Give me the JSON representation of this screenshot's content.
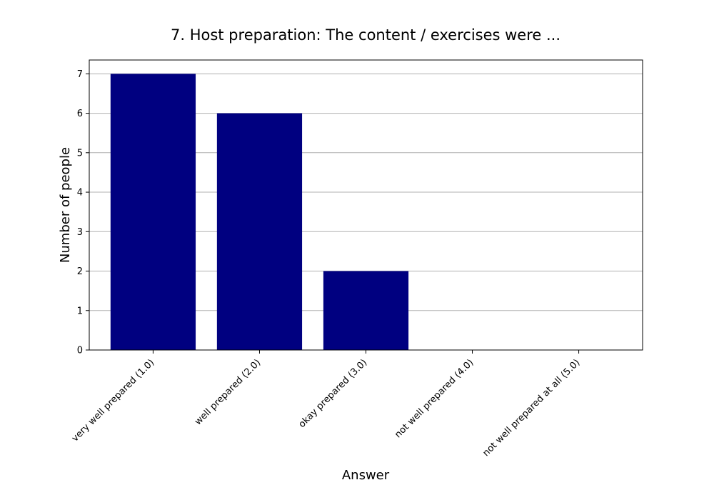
{
  "chart_data": {
    "type": "bar",
    "title": "7. Host preparation: The content / exercises were ...",
    "xlabel": "Answer",
    "ylabel": "Number of people",
    "categories": [
      "very well prepared (1.0)",
      "well prepared (2.0)",
      "okay prepared (3.0)",
      "not well prepared (4.0)",
      "not well prepared at all (5.0)"
    ],
    "values": [
      7,
      6,
      2,
      0,
      0
    ],
    "ylim": [
      0,
      7.35
    ],
    "yticks": [
      0,
      1,
      2,
      3,
      4,
      5,
      6,
      7
    ],
    "grid": "horizontal",
    "bar_color": "#000080",
    "grid_color": "#b0b0b0"
  }
}
